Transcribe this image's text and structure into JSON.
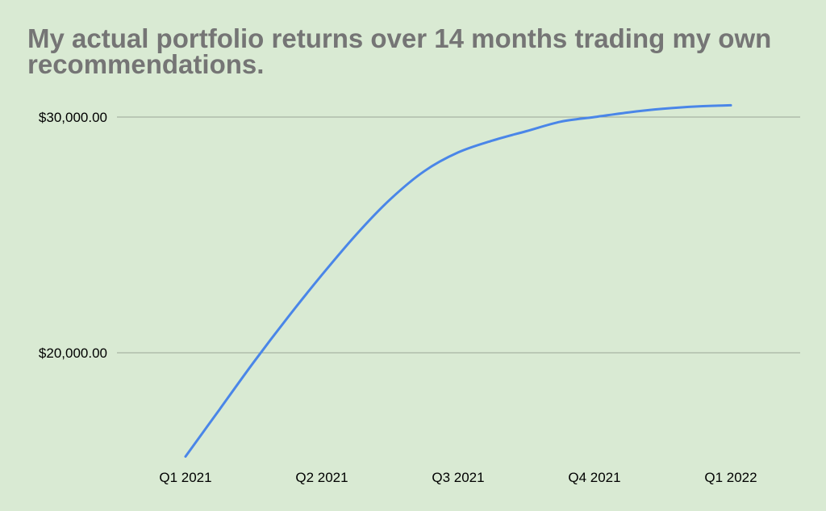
{
  "chart_data": {
    "type": "line",
    "title": "My actual portfolio returns over 14 months trading my own recommendations.",
    "xlabel": "",
    "ylabel": "",
    "categories": [
      "Q1 2021",
      "Q2 2021",
      "Q3 2021",
      "Q4 2021",
      "Q1 2022"
    ],
    "y_ticks": [
      {
        "value": 20000,
        "label": "$20,000.00"
      },
      {
        "value": 30000,
        "label": "$30,000.00"
      }
    ],
    "ylim": [
      15600,
      31000
    ],
    "x": [
      0,
      0.25,
      0.5,
      0.75,
      1,
      1.25,
      1.5,
      1.75,
      2,
      2.25,
      2.5,
      2.75,
      3,
      3.25,
      3.5,
      3.75,
      4
    ],
    "values": [
      15600,
      17600,
      19600,
      21500,
      23300,
      25000,
      26500,
      27700,
      28500,
      29000,
      29400,
      29800,
      30000,
      30200,
      30350,
      30450,
      30500
    ],
    "line_color": "#4a86e8",
    "grid": true,
    "legend": "none"
  }
}
